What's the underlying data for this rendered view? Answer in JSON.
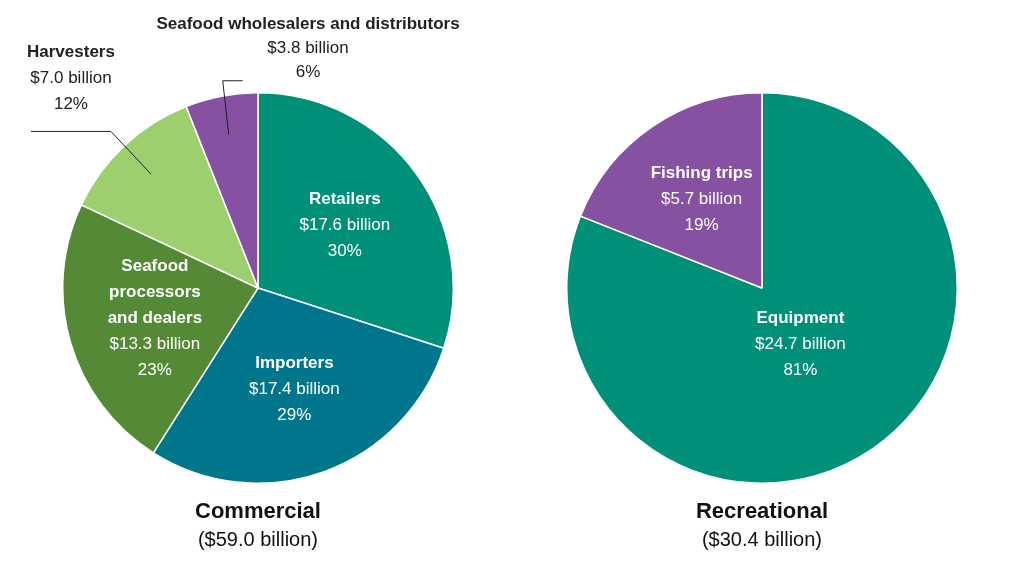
{
  "chart_data": [
    {
      "type": "pie",
      "title": "Commercial",
      "subtitle": "($59.0 billion)",
      "categories": [
        "Retailers",
        "Importers",
        "Seafood processors and dealers",
        "Harvesters",
        "Seafood wholesalers and distributors"
      ],
      "values": [
        30,
        29,
        23,
        12,
        6
      ],
      "colors": [
        "#00907a",
        "#00768c",
        "#548a35",
        "#9ecf6f",
        "#8551a0"
      ],
      "value_labels": [
        "$17.6 billion\n30%",
        "$17.4 billion\n29%",
        "$13.3 billion\n23%",
        "$7.0 billion\n12%",
        "$3.8 billion\n6%"
      ],
      "legend": false
    },
    {
      "type": "pie",
      "title": "Recreational",
      "subtitle": "($30.4 billion)",
      "categories": [
        "Equipment",
        "Fishing trips"
      ],
      "values": [
        81,
        19
      ],
      "colors": [
        "#00907a",
        "#8551a0"
      ],
      "value_labels": [
        "$24.7 billion\n81%",
        "$5.7 billion\n19%"
      ],
      "legend": false
    }
  ]
}
